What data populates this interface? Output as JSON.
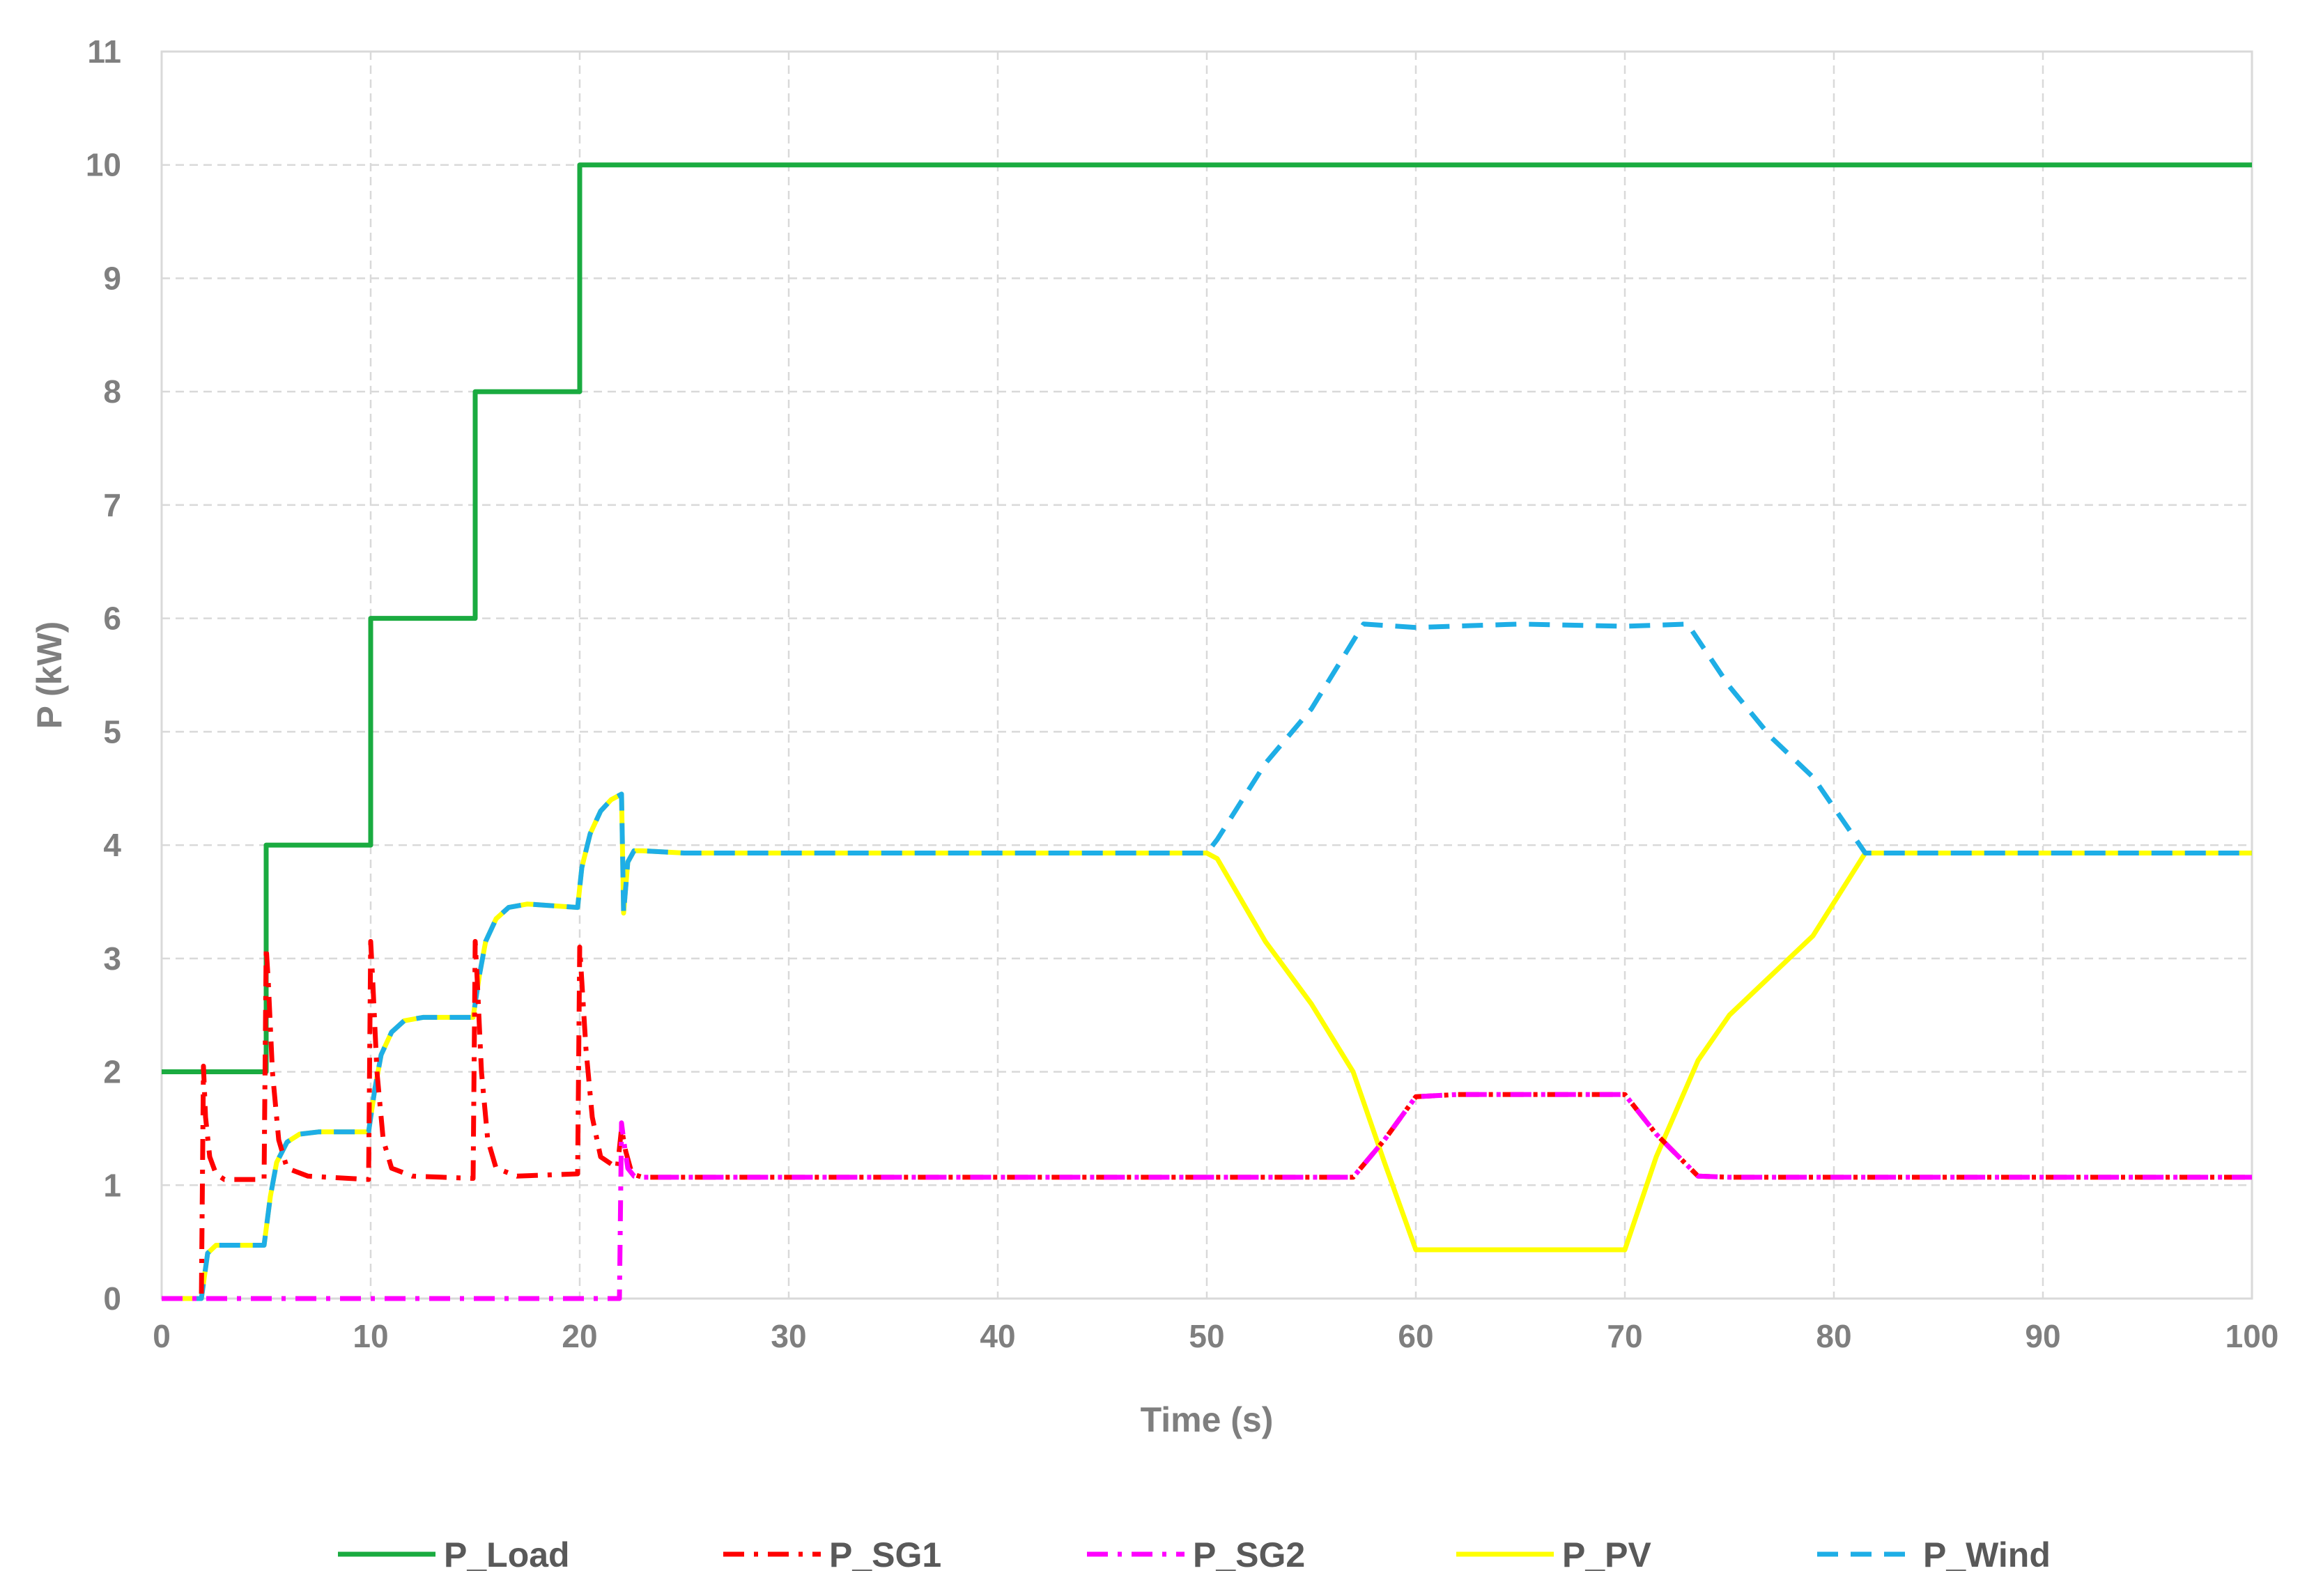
{
  "chart_data": {
    "type": "line",
    "xlabel": "Time (s)",
    "ylabel": "P (kW)",
    "xlim": [
      0,
      100
    ],
    "ylim": [
      0,
      11
    ],
    "xticks": [
      0,
      10,
      20,
      30,
      40,
      50,
      60,
      70,
      80,
      90,
      100
    ],
    "yticks": [
      0,
      1,
      2,
      3,
      4,
      5,
      6,
      7,
      8,
      9,
      10,
      11
    ],
    "grid": true,
    "legend_position": "bottom",
    "series": [
      {
        "name": "P_Load",
        "color": "#1aab40",
        "style": "solid",
        "x": [
          0,
          5,
          5,
          10,
          10,
          15,
          15,
          20,
          20,
          100
        ],
        "y": [
          2,
          2,
          4,
          4,
          6,
          6,
          8,
          8,
          10,
          10
        ]
      },
      {
        "name": "P_SG1",
        "color": "#ff0000",
        "style": "dashdot",
        "x": [
          0,
          1.9,
          2.0,
          2.1,
          2.3,
          2.6,
          3.0,
          3.6,
          4.9,
          5.0,
          5.1,
          5.3,
          5.6,
          6.0,
          7.0,
          9.9,
          10.0,
          10.1,
          10.3,
          10.6,
          11.0,
          12.0,
          14.9,
          15.0,
          15.1,
          15.3,
          15.6,
          16.0,
          17.0,
          19.9,
          20.0,
          20.1,
          20.3,
          20.6,
          21.0,
          21.8,
          22.0,
          22.2,
          22.5,
          23.0,
          30,
          40,
          50,
          57,
          58.5,
          60,
          62,
          64,
          66,
          68,
          70,
          71.5,
          73.5,
          75,
          80,
          90,
          100
        ],
        "y": [
          0,
          0,
          2.05,
          1.6,
          1.25,
          1.1,
          1.05,
          1.05,
          1.05,
          3.1,
          2.8,
          2.0,
          1.4,
          1.15,
          1.08,
          1.05,
          3.15,
          2.8,
          2.0,
          1.4,
          1.15,
          1.08,
          1.06,
          3.15,
          2.8,
          2.0,
          1.4,
          1.15,
          1.08,
          1.1,
          3.1,
          2.8,
          2.2,
          1.6,
          1.25,
          1.15,
          1.5,
          1.3,
          1.1,
          1.07,
          1.07,
          1.07,
          1.07,
          1.07,
          1.4,
          1.78,
          1.8,
          1.8,
          1.8,
          1.8,
          1.8,
          1.45,
          1.08,
          1.07,
          1.07,
          1.07,
          1.07
        ]
      },
      {
        "name": "P_SG2",
        "color": "#ff00ff",
        "style": "dashdot",
        "x": [
          0,
          21.9,
          22.0,
          22.1,
          22.3,
          22.6,
          23.0,
          30,
          40,
          50,
          57,
          58.5,
          60,
          62,
          64,
          66,
          68,
          70,
          71.5,
          73.5,
          75,
          80,
          90,
          100
        ],
        "y": [
          0,
          0,
          1.55,
          1.4,
          1.15,
          1.08,
          1.07,
          1.07,
          1.07,
          1.07,
          1.07,
          1.4,
          1.78,
          1.8,
          1.8,
          1.8,
          1.8,
          1.8,
          1.45,
          1.08,
          1.07,
          1.07,
          1.07,
          1.07
        ]
      },
      {
        "name": "P_PV",
        "color": "#ffff00",
        "style": "solid",
        "x": [
          0,
          1.9,
          2.2,
          2.6,
          4.9,
          5.2,
          5.5,
          6.0,
          6.6,
          7.5,
          9.9,
          10.2,
          10.5,
          11.0,
          11.6,
          12.5,
          14.9,
          15.2,
          15.5,
          16.0,
          16.6,
          17.5,
          19.9,
          20.1,
          20.5,
          21.0,
          21.5,
          22.0,
          22.1,
          22.3,
          22.6,
          23.0,
          25,
          30,
          40,
          50,
          50.5,
          52.8,
          55,
          57,
          58.5,
          60,
          65,
          70,
          71.5,
          73.5,
          75,
          77,
          79,
          81.5,
          90,
          100
        ],
        "y": [
          0,
          0,
          0.4,
          0.47,
          0.47,
          0.9,
          1.2,
          1.38,
          1.45,
          1.47,
          1.47,
          1.85,
          2.15,
          2.35,
          2.45,
          2.48,
          2.48,
          2.85,
          3.15,
          3.35,
          3.45,
          3.48,
          3.45,
          3.8,
          4.1,
          4.3,
          4.4,
          4.45,
          3.4,
          3.85,
          3.95,
          3.95,
          3.93,
          3.93,
          3.93,
          3.93,
          3.88,
          3.15,
          2.6,
          2.0,
          1.2,
          0.43,
          0.43,
          0.43,
          1.25,
          2.1,
          2.5,
          2.85,
          3.2,
          3.93,
          3.93,
          3.93
        ]
      },
      {
        "name": "P_Wind",
        "color": "#1eaee6",
        "style": "dashed",
        "x": [
          0,
          1.9,
          2.2,
          2.6,
          4.9,
          5.2,
          5.5,
          6.0,
          6.6,
          7.5,
          9.9,
          10.2,
          10.5,
          11.0,
          11.6,
          12.5,
          14.9,
          15.2,
          15.5,
          16.0,
          16.6,
          17.5,
          19.9,
          20.1,
          20.5,
          21.0,
          21.5,
          22.0,
          22.1,
          22.3,
          22.6,
          23.0,
          25,
          30,
          40,
          50,
          50.5,
          52.8,
          55,
          57.5,
          60,
          65,
          70,
          73,
          75,
          77,
          79,
          81.5,
          90,
          100
        ],
        "y": [
          0,
          0,
          0.4,
          0.47,
          0.47,
          0.9,
          1.2,
          1.38,
          1.45,
          1.47,
          1.47,
          1.85,
          2.15,
          2.35,
          2.45,
          2.48,
          2.48,
          2.85,
          3.15,
          3.35,
          3.45,
          3.48,
          3.45,
          3.8,
          4.1,
          4.3,
          4.4,
          4.45,
          3.4,
          3.85,
          3.95,
          3.95,
          3.93,
          3.93,
          3.93,
          3.93,
          4.05,
          4.72,
          5.2,
          5.95,
          5.92,
          5.95,
          5.93,
          5.95,
          5.4,
          4.95,
          4.6,
          3.93,
          3.93,
          3.93
        ]
      }
    ]
  }
}
